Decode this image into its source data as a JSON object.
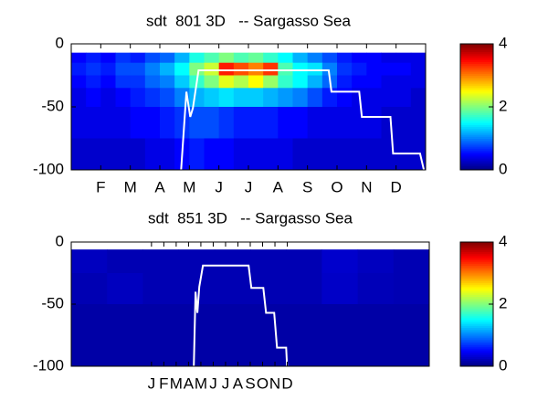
{
  "chart_data": [
    {
      "type": "heatmap",
      "title": "sdt  801 3D   -- Sargasso Sea",
      "xlim": [
        0,
        12
      ],
      "ylim": [
        0,
        -100
      ],
      "xticks": [
        {
          "value": 1,
          "label": "F"
        },
        {
          "value": 2,
          "label": "M"
        },
        {
          "value": 3,
          "label": "A"
        },
        {
          "value": 4,
          "label": "M"
        },
        {
          "value": 5,
          "label": "J"
        },
        {
          "value": 6,
          "label": "J"
        },
        {
          "value": 7,
          "label": "A"
        },
        {
          "value": 8,
          "label": "S"
        },
        {
          "value": 9,
          "label": "O"
        },
        {
          "value": 10,
          "label": "N"
        },
        {
          "value": 11,
          "label": "D"
        }
      ],
      "yticks": [
        0,
        -50,
        -100
      ],
      "x_edges": [
        0,
        0.5,
        1,
        1.5,
        2,
        2.5,
        3,
        3.5,
        4,
        4.5,
        5,
        5.5,
        6,
        6.5,
        7,
        7.5,
        8,
        8.5,
        9,
        9.5,
        10,
        10.5,
        11,
        11.5,
        12
      ],
      "y_edges": [
        -7,
        -15,
        -25,
        -35,
        -50,
        -75,
        -100
      ],
      "z": [
        [
          0.5,
          0.6,
          0.5,
          0.7,
          0.6,
          0.8,
          0.9,
          1.2,
          1.6,
          1.8,
          2.0,
          1.8,
          1.9,
          1.7,
          1.5,
          1.2,
          1.0,
          0.8,
          0.6,
          0.5,
          0.5,
          0.4,
          0.4,
          0.4
        ],
        [
          0.6,
          0.7,
          0.6,
          0.8,
          0.8,
          1.0,
          1.2,
          1.5,
          2.0,
          2.3,
          3.4,
          3.2,
          3.0,
          3.3,
          1.8,
          1.5,
          1.4,
          1.0,
          0.7,
          0.6,
          0.5,
          0.5,
          0.5,
          0.4
        ],
        [
          0.5,
          0.6,
          0.5,
          0.7,
          0.7,
          0.9,
          1.0,
          1.3,
          1.7,
          2.0,
          2.4,
          2.2,
          2.5,
          2.1,
          1.7,
          1.5,
          1.2,
          0.9,
          0.6,
          0.5,
          0.5,
          0.4,
          0.4,
          0.4
        ],
        [
          0.4,
          0.5,
          0.4,
          0.5,
          0.6,
          0.7,
          0.8,
          1.0,
          1.2,
          1.3,
          1.4,
          1.3,
          1.3,
          1.2,
          1.1,
          1.0,
          0.8,
          0.6,
          0.5,
          0.4,
          0.4,
          0.4,
          0.4,
          0.3
        ],
        [
          0.4,
          0.4,
          0.4,
          0.4,
          0.5,
          0.5,
          0.6,
          0.7,
          0.8,
          0.8,
          0.7,
          0.6,
          0.6,
          0.6,
          0.5,
          0.5,
          0.4,
          0.4,
          0.4,
          0.4,
          0.4,
          0.3,
          0.3,
          0.3
        ],
        [
          0.3,
          0.3,
          0.3,
          0.3,
          0.3,
          0.4,
          0.4,
          0.5,
          0.6,
          0.5,
          0.5,
          0.4,
          0.4,
          0.4,
          0.4,
          0.3,
          0.3,
          0.3,
          0.3,
          0.3,
          0.3,
          0.3,
          0.3,
          0.3
        ]
      ],
      "clim": [
        0,
        4
      ],
      "cticks": [
        0,
        2,
        4
      ],
      "series": [
        {
          "color": "#ffffff",
          "x": [
            3.72,
            3.9,
            4.03,
            4.12,
            4.31,
            8.72,
            8.81,
            9.75,
            9.84,
            10.81,
            10.9,
            11.81,
            11.94
          ],
          "y": [
            -100,
            -38,
            -58,
            -51,
            -21,
            -21,
            -38,
            -38,
            -58,
            -58,
            -87,
            -87,
            -100
          ]
        }
      ]
    },
    {
      "type": "heatmap",
      "title": "sdt  851 3D   -- Sargasso Sea",
      "xlim": [
        -6.5,
        22.5
      ],
      "ylim": [
        0,
        -100
      ],
      "xticks": [
        {
          "value": 0,
          "label": "J"
        },
        {
          "value": 1,
          "label": "F"
        },
        {
          "value": 2,
          "label": "M"
        },
        {
          "value": 3,
          "label": "A"
        },
        {
          "value": 4,
          "label": "M"
        },
        {
          "value": 5,
          "label": "J"
        },
        {
          "value": 6,
          "label": "J"
        },
        {
          "value": 7,
          "label": "A"
        },
        {
          "value": 8,
          "label": "S"
        },
        {
          "value": 9,
          "label": "O"
        },
        {
          "value": 10,
          "label": "N"
        },
        {
          "value": 11,
          "label": "D"
        }
      ],
      "yticks": [
        0,
        -50,
        -100
      ],
      "x_edges": [
        -6.5,
        -3.6,
        -0.7,
        2.2,
        5.1,
        8,
        10.9,
        13.8,
        16.7,
        19.6,
        22.5
      ],
      "y_edges": [
        -6,
        -25,
        -50,
        -100
      ],
      "z": [
        [
          0.25,
          0.2,
          0.2,
          0.2,
          0.2,
          0.2,
          0.2,
          0.3,
          0.25,
          0.2
        ],
        [
          0.2,
          0.25,
          0.2,
          0.2,
          0.2,
          0.2,
          0.2,
          0.28,
          0.22,
          0.2
        ],
        [
          0.15,
          0.15,
          0.15,
          0.15,
          0.15,
          0.15,
          0.15,
          0.15,
          0.15,
          0.15
        ]
      ],
      "clim": [
        0,
        4
      ],
      "cticks": [
        0,
        2,
        4
      ],
      "series": [
        {
          "color": "#ffffff",
          "x": [
            3.43,
            3.57,
            3.72,
            3.87,
            4.17,
            7.87,
            8.09,
            9.06,
            9.28,
            9.94,
            10.17,
            10.91,
            10.98
          ],
          "y": [
            -100,
            -40,
            -57,
            -36,
            -19,
            -19,
            -37,
            -37,
            -57,
            -57,
            -85,
            -85,
            -100
          ]
        }
      ]
    }
  ]
}
